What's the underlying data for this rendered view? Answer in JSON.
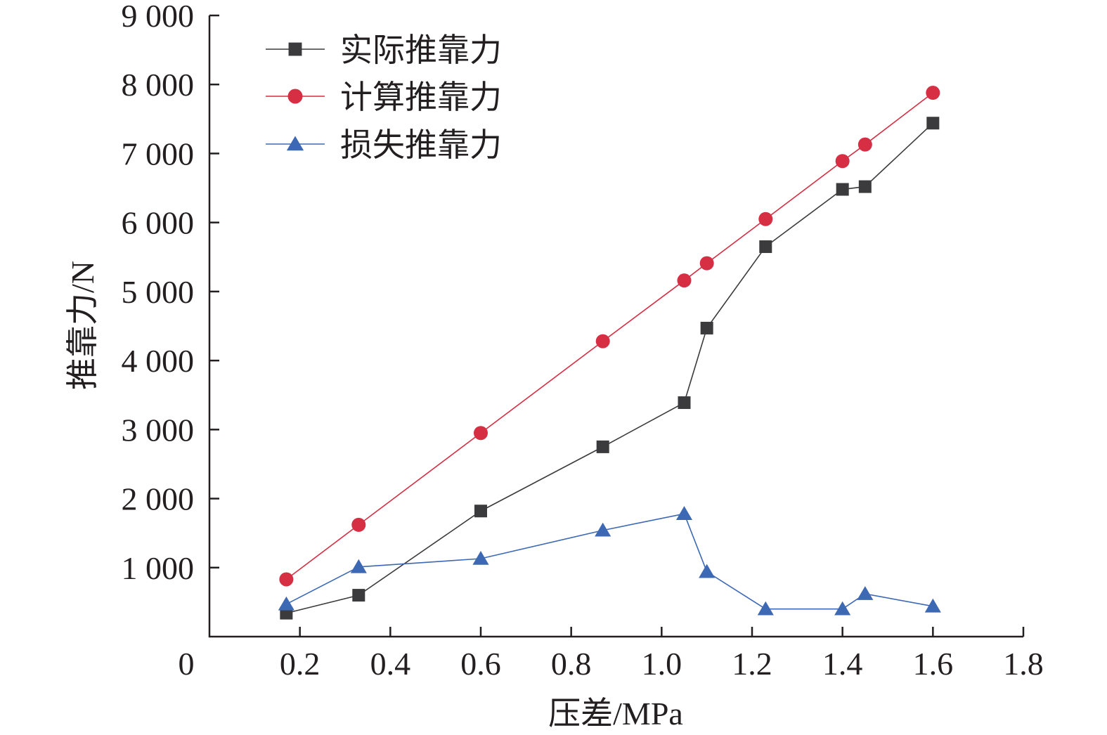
{
  "chart_data": {
    "type": "line",
    "title": "",
    "xlabel": "压差/MPa",
    "ylabel": "推靠力/N",
    "xlim": [
      0,
      1.8
    ],
    "ylim": [
      0,
      9000
    ],
    "x_ticks": [
      0,
      0.2,
      0.4,
      0.6,
      0.8,
      1.0,
      1.2,
      1.4,
      1.6,
      1.8
    ],
    "x_tick_labels": [
      "0",
      "0.2",
      "0.4",
      "0.6",
      "0.8",
      "1.0",
      "1.2",
      "1.4",
      "1.6",
      "1.8"
    ],
    "y_ticks": [
      1000,
      2000,
      3000,
      4000,
      5000,
      6000,
      7000,
      8000,
      9000
    ],
    "y_tick_labels": [
      "1 000",
      "2 000",
      "3 000",
      "4 000",
      "5 000",
      "6 000",
      "7 000",
      "8 000",
      "9 000"
    ],
    "grid": false,
    "legend_position": "top-left",
    "x": [
      0.17,
      0.33,
      0.6,
      0.87,
      1.05,
      1.1,
      1.23,
      1.4,
      1.45,
      1.6
    ],
    "series": [
      {
        "name": "实际推靠力",
        "marker": "square",
        "color": "#3b3b3d",
        "values": [
          340,
          600,
          1820,
          2750,
          3390,
          4470,
          5650,
          6480,
          6520,
          7440
        ]
      },
      {
        "name": "计算推靠力",
        "marker": "circle",
        "color": "#d62e43",
        "values": [
          830,
          1620,
          2950,
          4280,
          5160,
          5410,
          6050,
          6890,
          7130,
          7880
        ]
      },
      {
        "name": "损失推靠力",
        "marker": "triangle",
        "color": "#3d68b4",
        "values": [
          470,
          1010,
          1130,
          1540,
          1780,
          940,
          400,
          400,
          620,
          440
        ]
      }
    ]
  }
}
